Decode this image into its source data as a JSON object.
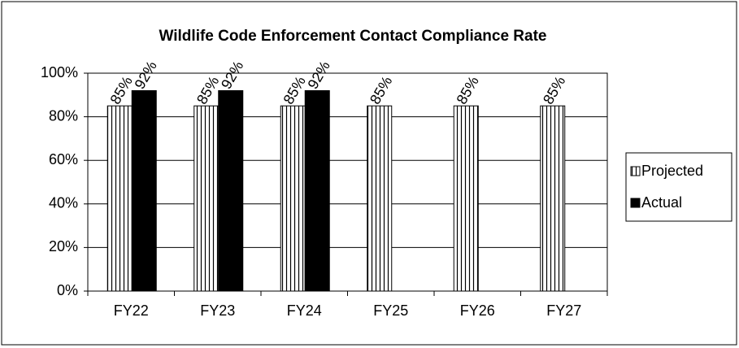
{
  "chart_data": {
    "type": "bar",
    "title": "Wildlife Code Enforcement Contact Compliance Rate",
    "categories": [
      "FY22",
      "FY23",
      "FY24",
      "FY25",
      "FY26",
      "FY27"
    ],
    "series": [
      {
        "name": "Projected",
        "color": "#ffffff",
        "values": [
          85,
          85,
          85,
          85,
          85,
          85
        ],
        "value_labels": [
          "85%",
          "85%",
          "85%",
          "85%",
          "85%",
          "85%"
        ]
      },
      {
        "name": "Actual",
        "color": "#000000",
        "values": [
          92,
          92,
          92,
          null,
          null,
          null
        ],
        "value_labels": [
          "92%",
          "92%",
          "92%",
          null,
          null,
          null
        ]
      }
    ],
    "ylim": [
      0,
      100
    ],
    "yticks": [
      {
        "value": 0,
        "label": "0%"
      },
      {
        "value": 20,
        "label": "20%"
      },
      {
        "value": 40,
        "label": "40%"
      },
      {
        "value": 60,
        "label": "60%"
      },
      {
        "value": 80,
        "label": "80%"
      },
      {
        "value": 100,
        "label": "100%"
      }
    ],
    "grid": true,
    "legend": "right"
  }
}
